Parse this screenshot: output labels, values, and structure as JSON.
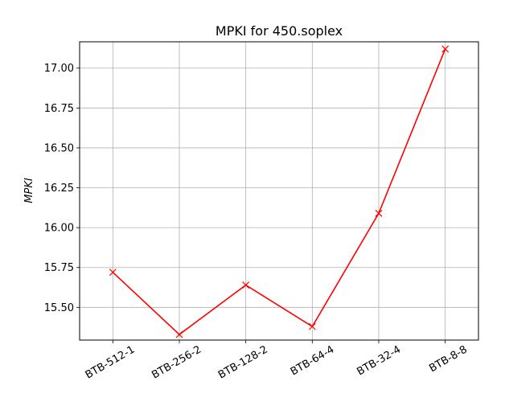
{
  "chart_data": {
    "type": "line",
    "title": "MPKI for 450.soplex",
    "xlabel": "",
    "ylabel": "MPKI",
    "categories": [
      "BTB-512-1",
      "BTB-256-2",
      "BTB-128-2",
      "BTB-64-4",
      "BTB-32-4",
      "BTB-8-8"
    ],
    "series": [
      {
        "values": [
          15.72,
          15.33,
          15.64,
          15.38,
          16.09,
          17.12
        ],
        "color": "#ff0000",
        "marker": "x"
      }
    ],
    "ylim": [
      15.295,
      17.165
    ],
    "yticks": [
      15.5,
      15.75,
      16.0,
      16.25,
      16.5,
      16.75,
      17.0
    ],
    "ytick_labels": [
      "15.50",
      "15.75",
      "16.00",
      "16.25",
      "16.50",
      "16.75",
      "17.00"
    ],
    "grid": true,
    "legend": "none"
  }
}
